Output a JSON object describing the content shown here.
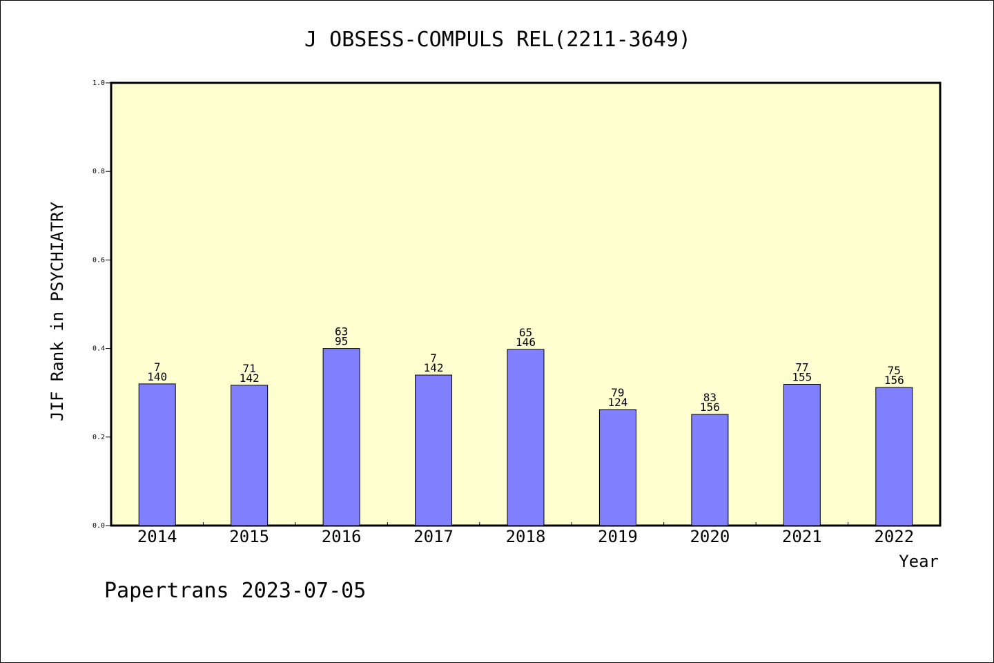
{
  "chart_data": {
    "type": "bar",
    "title": "J OBSESS-COMPULS REL(2211-3649)",
    "xlabel": "Year",
    "ylabel": "JIF Rank in PSYCHIATRY",
    "ylim": [
      0.0,
      1.0
    ],
    "yticks": [
      "0.0",
      "0.2",
      "0.4",
      "0.6",
      "0.8",
      "1.0"
    ],
    "categories": [
      "2014",
      "2015",
      "2016",
      "2017",
      "2018",
      "2019",
      "2020",
      "2021",
      "2022"
    ],
    "values": [
      0.32,
      0.317,
      0.4,
      0.34,
      0.398,
      0.262,
      0.251,
      0.319,
      0.312
    ],
    "labels_top": [
      "7",
      "71",
      "63",
      "7",
      "65",
      "79",
      "83",
      "77",
      "75"
    ],
    "labels_bottom": [
      "140",
      "142",
      "95",
      "142",
      "146",
      "124",
      "156",
      "155",
      "156"
    ],
    "grid": false,
    "colors": {
      "plot_background": "#ffffd0",
      "bar_fill": "#8080ff",
      "bar_stroke": "#000000"
    }
  },
  "footer": "Papertrans 2023-07-05"
}
